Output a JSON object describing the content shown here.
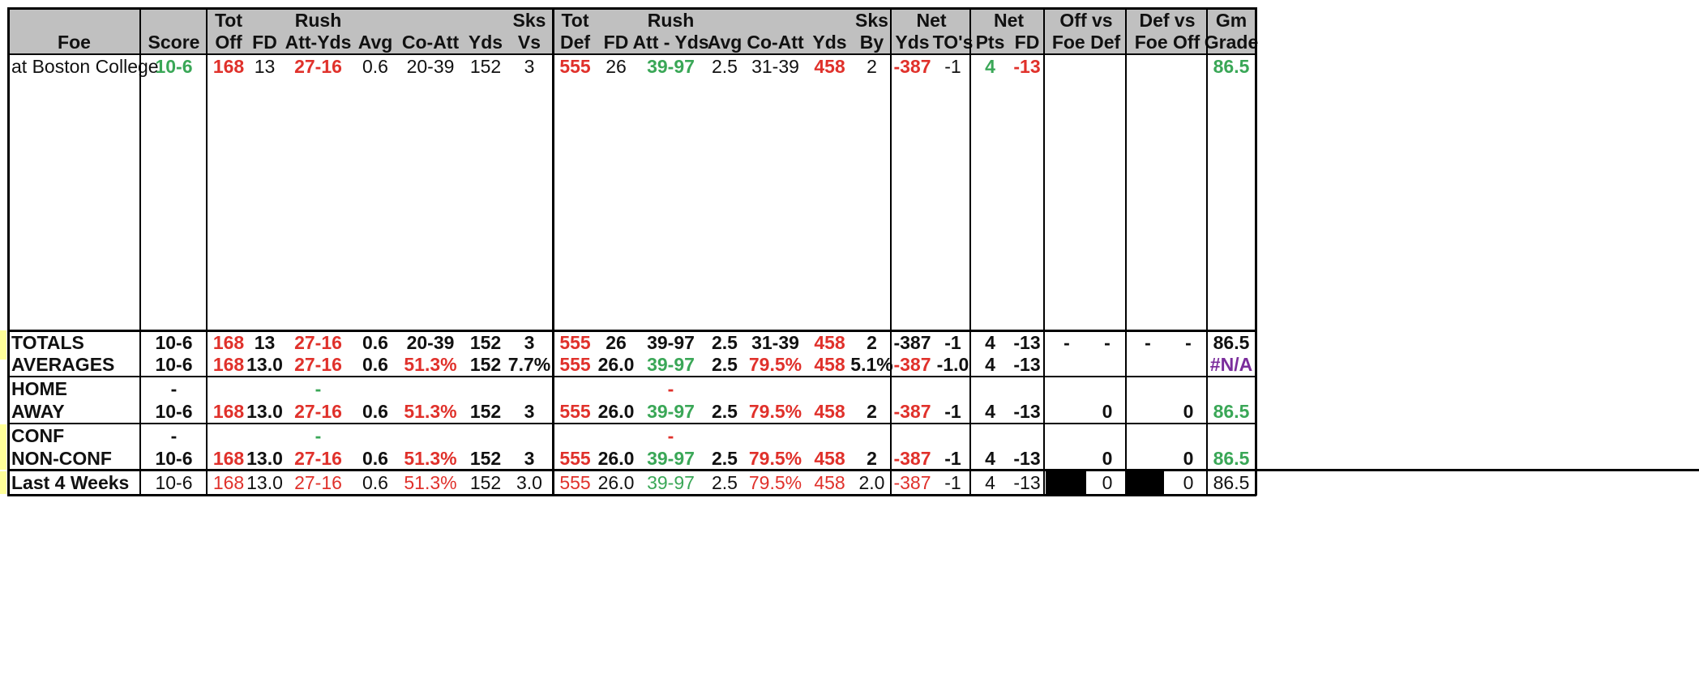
{
  "header_row1": [
    "Tot",
    "Rush",
    "Sks",
    "Tot",
    "Rush",
    "Sks",
    "Net",
    "Net",
    "Off vs",
    "Def vs",
    "Gm"
  ],
  "header_row2": [
    "Foe",
    "Score",
    "Off",
    "FD",
    "Att-Yds",
    "Avg",
    "Co-Att",
    "Yds",
    "Vs",
    "Def",
    "FD",
    "Att - Yds",
    "Avg",
    "Co-Att",
    "Yds",
    "By",
    "Yds",
    "TO's",
    "Pts",
    "FD",
    "Foe Def",
    "Foe Off",
    "Grade"
  ],
  "game": {
    "foe": "at Boston College",
    "cells": [
      {
        "t": "10-6",
        "c": "green",
        "b": true
      },
      {
        "t": "168",
        "c": "red",
        "b": true
      },
      {
        "t": "13"
      },
      {
        "t": "27-16",
        "c": "red",
        "b": true
      },
      {
        "t": "0.6"
      },
      {
        "t": "20-39"
      },
      {
        "t": "152"
      },
      {
        "t": "3"
      },
      {
        "t": "555",
        "c": "red",
        "b": true
      },
      {
        "t": "26"
      },
      {
        "t": "39-97",
        "c": "green",
        "b": true
      },
      {
        "t": "2.5"
      },
      {
        "t": "31-39"
      },
      {
        "t": "458",
        "c": "red",
        "b": true
      },
      {
        "t": "2"
      },
      {
        "t": "-387",
        "c": "red",
        "b": true
      },
      {
        "t": "-1"
      },
      {
        "t": "4",
        "c": "green",
        "b": true
      },
      {
        "t": "-13",
        "c": "red",
        "b": true
      },
      {
        "t": ""
      },
      {
        "t": ""
      },
      {
        "t": ""
      },
      {
        "t": ""
      },
      {
        "t": "86.5",
        "c": "green",
        "b": true
      }
    ]
  },
  "rows": [
    {
      "label": "TOTALS",
      "cells": [
        {
          "t": "10-6"
        },
        {
          "t": "168",
          "c": "red"
        },
        {
          "t": "13"
        },
        {
          "t": "27-16",
          "c": "red"
        },
        {
          "t": "0.6"
        },
        {
          "t": "20-39"
        },
        {
          "t": "152"
        },
        {
          "t": "3"
        },
        {
          "t": "555",
          "c": "red"
        },
        {
          "t": "26"
        },
        {
          "t": "39-97"
        },
        {
          "t": "2.5"
        },
        {
          "t": "31-39"
        },
        {
          "t": "458",
          "c": "red"
        },
        {
          "t": "2"
        },
        {
          "t": "-387"
        },
        {
          "t": "-1"
        },
        {
          "t": "4"
        },
        {
          "t": "-13"
        },
        {
          "t": "-"
        },
        {
          "t": "-"
        },
        {
          "t": "-"
        },
        {
          "t": "-"
        },
        {
          "t": "86.5"
        }
      ]
    },
    {
      "label": "AVERAGES",
      "cells": [
        {
          "t": "10-6"
        },
        {
          "t": "168",
          "c": "red"
        },
        {
          "t": "13.0"
        },
        {
          "t": "27-16",
          "c": "red"
        },
        {
          "t": "0.6"
        },
        {
          "t": "51.3%",
          "c": "red"
        },
        {
          "t": "152"
        },
        {
          "t": "7.7%"
        },
        {
          "t": "555",
          "c": "red"
        },
        {
          "t": "26.0"
        },
        {
          "t": "39-97",
          "c": "green"
        },
        {
          "t": "2.5"
        },
        {
          "t": "79.5%",
          "c": "red"
        },
        {
          "t": "458",
          "c": "red"
        },
        {
          "t": "5.1%"
        },
        {
          "t": "-387",
          "c": "red"
        },
        {
          "t": "-1.0"
        },
        {
          "t": "4"
        },
        {
          "t": "-13"
        },
        {
          "t": ""
        },
        {
          "t": ""
        },
        {
          "t": ""
        },
        {
          "t": ""
        },
        {
          "t": "#N/A",
          "c": "purple"
        }
      ]
    },
    {
      "label": "HOME",
      "cells": [
        {
          "t": "-"
        },
        {
          "t": ""
        },
        {
          "t": ""
        },
        {
          "t": "-",
          "c": "green"
        },
        {
          "t": ""
        },
        {
          "t": ""
        },
        {
          "t": ""
        },
        {
          "t": ""
        },
        {
          "t": ""
        },
        {
          "t": ""
        },
        {
          "t": "-",
          "c": "red"
        },
        {
          "t": ""
        },
        {
          "t": ""
        },
        {
          "t": ""
        },
        {
          "t": ""
        },
        {
          "t": ""
        },
        {
          "t": ""
        },
        {
          "t": ""
        },
        {
          "t": ""
        },
        {
          "t": ""
        },
        {
          "t": ""
        },
        {
          "t": ""
        },
        {
          "t": ""
        },
        {
          "t": ""
        }
      ]
    },
    {
      "label": "AWAY",
      "cells": [
        {
          "t": "10-6"
        },
        {
          "t": "168",
          "c": "red"
        },
        {
          "t": "13.0"
        },
        {
          "t": "27-16",
          "c": "red"
        },
        {
          "t": "0.6"
        },
        {
          "t": "51.3%",
          "c": "red"
        },
        {
          "t": "152"
        },
        {
          "t": "3"
        },
        {
          "t": "555",
          "c": "red"
        },
        {
          "t": "26.0"
        },
        {
          "t": "39-97",
          "c": "green"
        },
        {
          "t": "2.5"
        },
        {
          "t": "79.5%",
          "c": "red"
        },
        {
          "t": "458",
          "c": "red"
        },
        {
          "t": "2"
        },
        {
          "t": "-387",
          "c": "red"
        },
        {
          "t": "-1"
        },
        {
          "t": "4"
        },
        {
          "t": "-13"
        },
        {
          "t": ""
        },
        {
          "t": "0"
        },
        {
          "t": ""
        },
        {
          "t": "0"
        },
        {
          "t": "86.5",
          "c": "green"
        }
      ]
    },
    {
      "label": "CONF",
      "cells": [
        {
          "t": "-"
        },
        {
          "t": ""
        },
        {
          "t": ""
        },
        {
          "t": "-",
          "c": "green"
        },
        {
          "t": ""
        },
        {
          "t": ""
        },
        {
          "t": ""
        },
        {
          "t": ""
        },
        {
          "t": ""
        },
        {
          "t": ""
        },
        {
          "t": "-",
          "c": "red"
        },
        {
          "t": ""
        },
        {
          "t": ""
        },
        {
          "t": ""
        },
        {
          "t": ""
        },
        {
          "t": ""
        },
        {
          "t": ""
        },
        {
          "t": ""
        },
        {
          "t": ""
        },
        {
          "t": ""
        },
        {
          "t": ""
        },
        {
          "t": ""
        },
        {
          "t": ""
        },
        {
          "t": ""
        }
      ]
    },
    {
      "label": "NON-CONF",
      "cells": [
        {
          "t": "10-6"
        },
        {
          "t": "168",
          "c": "red"
        },
        {
          "t": "13.0"
        },
        {
          "t": "27-16",
          "c": "red"
        },
        {
          "t": "0.6"
        },
        {
          "t": "51.3%",
          "c": "red"
        },
        {
          "t": "152"
        },
        {
          "t": "3"
        },
        {
          "t": "555",
          "c": "red"
        },
        {
          "t": "26.0"
        },
        {
          "t": "39-97",
          "c": "green"
        },
        {
          "t": "2.5"
        },
        {
          "t": "79.5%",
          "c": "red"
        },
        {
          "t": "458",
          "c": "red"
        },
        {
          "t": "2"
        },
        {
          "t": "-387",
          "c": "red"
        },
        {
          "t": "-1"
        },
        {
          "t": "4"
        },
        {
          "t": "-13"
        },
        {
          "t": ""
        },
        {
          "t": "0"
        },
        {
          "t": ""
        },
        {
          "t": "0"
        },
        {
          "t": "86.5",
          "c": "green"
        }
      ]
    },
    {
      "label": "Last 4 Weeks",
      "cells": [
        {
          "t": "10-6"
        },
        {
          "t": "168",
          "c": "red"
        },
        {
          "t": "13.0"
        },
        {
          "t": "27-16",
          "c": "red"
        },
        {
          "t": "0.6"
        },
        {
          "t": "51.3%",
          "c": "red"
        },
        {
          "t": "152"
        },
        {
          "t": "3.0"
        },
        {
          "t": "555",
          "c": "red"
        },
        {
          "t": "26.0"
        },
        {
          "t": "39-97",
          "c": "green"
        },
        {
          "t": "2.5"
        },
        {
          "t": "79.5%",
          "c": "red"
        },
        {
          "t": "458",
          "c": "red"
        },
        {
          "t": "2.0"
        },
        {
          "t": "-387",
          "c": "red"
        },
        {
          "t": "-1"
        },
        {
          "t": "4"
        },
        {
          "t": "-13"
        },
        {
          "t": ""
        },
        {
          "t": "0",
          "plain": true
        },
        {
          "t": ""
        },
        {
          "t": "0",
          "plain": true
        },
        {
          "t": "86.5",
          "plain": true
        }
      ]
    }
  ],
  "colors": {
    "header_bg": "#c0c0c0",
    "red": "#e0312b",
    "green": "#3aa757",
    "purple": "#7b2d9c",
    "highlight": "#ffff99",
    "black_cell": "#000000"
  }
}
